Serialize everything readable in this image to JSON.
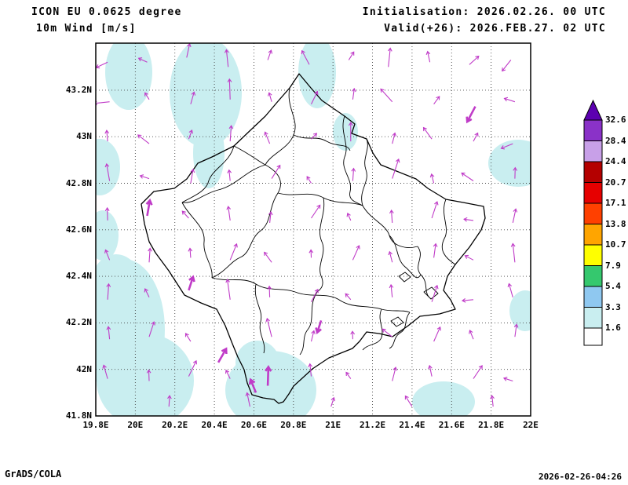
{
  "header": {
    "model": "ICON EU 0.0625 degree",
    "field": "10m Wind [m/s]",
    "initialisation": "Initialisation: 2026.02.26. 00 UTC",
    "valid": "Valid(+26): 2026.FEB.27. 02 UTC"
  },
  "footer": {
    "credit": "GrADS/COLA",
    "timestamp": "2026-02-26-04:26"
  },
  "axes": {
    "lon_labels": [
      "19.8E",
      "20E",
      "20.2E",
      "20.4E",
      "20.6E",
      "20.8E",
      "21E",
      "21.2E",
      "21.4E",
      "21.6E",
      "21.8E",
      "22E"
    ],
    "lat_labels": [
      "41.8N",
      "42N",
      "42.2N",
      "42.4N",
      "42.6N",
      "42.8N",
      "43N",
      "43.2N"
    ]
  },
  "legend": {
    "levels": [
      1.6,
      3.3,
      5.4,
      7.9,
      10.7,
      13.8,
      17.1,
      20.7,
      24.4,
      28.4,
      32.6
    ],
    "colors": [
      "#ffffff",
      "#c9eef0",
      "#8fc8f0",
      "#35c86e",
      "#ffff00",
      "#ffa500",
      "#ff4000",
      "#e60000",
      "#b40000",
      "#c8a0e8",
      "#8a32c8"
    ],
    "over_color": "#5c00b0"
  },
  "colors": {
    "shade_low": "#c9eef0",
    "arrow": "#c03cc8",
    "boundary": "#000000",
    "grid": "#444444"
  },
  "chart_data": {
    "type": "map-vector-field",
    "title": "ICON EU 0.0625 degree 10m Wind [m/s]",
    "unit": "m/s",
    "lon_range": [
      19.8,
      22.0
    ],
    "lat_range": [
      41.8,
      43.4
    ],
    "grid_step_deg": 0.2,
    "legend_position": "right",
    "shading_levels_ms": [
      1.6,
      3.3,
      5.4,
      7.9,
      10.7,
      13.8,
      17.1,
      20.7,
      24.4,
      28.4,
      32.6
    ],
    "shaded_band_visible_ms": "1.6-3.3",
    "arrows": [
      [
        19.86,
        43.32,
        205,
        16
      ],
      [
        20.06,
        43.32,
        155,
        12
      ],
      [
        20.26,
        43.34,
        78,
        18
      ],
      [
        20.47,
        43.3,
        96,
        22
      ],
      [
        20.67,
        43.33,
        70,
        13
      ],
      [
        20.88,
        43.31,
        118,
        20
      ],
      [
        21.08,
        43.33,
        58,
        12
      ],
      [
        21.28,
        43.3,
        84,
        24
      ],
      [
        21.49,
        43.32,
        102,
        14
      ],
      [
        21.69,
        43.31,
        42,
        16
      ],
      [
        21.9,
        43.33,
        232,
        18
      ],
      [
        19.87,
        43.15,
        186,
        20
      ],
      [
        20.07,
        43.16,
        122,
        10
      ],
      [
        20.28,
        43.14,
        74,
        16
      ],
      [
        20.48,
        43.16,
        92,
        26
      ],
      [
        20.69,
        43.15,
        106,
        12
      ],
      [
        20.89,
        43.14,
        64,
        18
      ],
      [
        21.1,
        43.16,
        82,
        14
      ],
      [
        21.3,
        43.15,
        132,
        22
      ],
      [
        21.51,
        43.14,
        54,
        12
      ],
      [
        21.92,
        43.15,
        162,
        14
      ],
      [
        19.86,
        42.98,
        95,
        14
      ],
      [
        20.07,
        42.97,
        142,
        18
      ],
      [
        20.27,
        42.99,
        70,
        12
      ],
      [
        20.48,
        42.98,
        86,
        20
      ],
      [
        20.68,
        42.97,
        112,
        16
      ],
      [
        20.89,
        42.99,
        46,
        10
      ],
      [
        21.09,
        42.98,
        90,
        24
      ],
      [
        21.3,
        42.97,
        76,
        14
      ],
      [
        21.5,
        42.99,
        126,
        18
      ],
      [
        21.71,
        42.98,
        62,
        12
      ],
      [
        21.91,
        42.97,
        202,
        16
      ],
      [
        19.87,
        42.81,
        100,
        22
      ],
      [
        20.07,
        42.82,
        162,
        12
      ],
      [
        20.28,
        42.8,
        80,
        18
      ],
      [
        20.48,
        42.81,
        96,
        14
      ],
      [
        20.69,
        42.82,
        58,
        20
      ],
      [
        20.89,
        42.8,
        122,
        10
      ],
      [
        21.1,
        42.81,
        86,
        16
      ],
      [
        21.3,
        42.82,
        72,
        26
      ],
      [
        21.51,
        42.8,
        104,
        12
      ],
      [
        21.71,
        42.81,
        146,
        18
      ],
      [
        21.92,
        42.82,
        88,
        14
      ],
      [
        19.86,
        42.64,
        92,
        16
      ],
      [
        20.27,
        42.65,
        132,
        12
      ],
      [
        20.48,
        42.64,
        98,
        18
      ],
      [
        20.68,
        42.63,
        84,
        14
      ],
      [
        20.89,
        42.65,
        56,
        20
      ],
      [
        21.09,
        42.64,
        114,
        10
      ],
      [
        21.3,
        42.63,
        94,
        16
      ],
      [
        21.5,
        42.65,
        72,
        22
      ],
      [
        21.71,
        42.64,
        172,
        12
      ],
      [
        21.91,
        42.63,
        78,
        18
      ],
      [
        19.87,
        42.47,
        112,
        14
      ],
      [
        20.07,
        42.46,
        86,
        18
      ],
      [
        20.28,
        42.48,
        94,
        12
      ],
      [
        20.48,
        42.47,
        68,
        22
      ],
      [
        20.69,
        42.46,
        126,
        16
      ],
      [
        20.89,
        42.48,
        92,
        10
      ],
      [
        21.1,
        42.47,
        66,
        20
      ],
      [
        21.3,
        42.46,
        104,
        14
      ],
      [
        21.51,
        42.48,
        82,
        18
      ],
      [
        21.71,
        42.47,
        152,
        12
      ],
      [
        21.92,
        42.46,
        96,
        24
      ],
      [
        19.86,
        42.3,
        86,
        20
      ],
      [
        20.07,
        42.31,
        116,
        12
      ],
      [
        20.48,
        42.3,
        98,
        26
      ],
      [
        20.68,
        42.31,
        92,
        14
      ],
      [
        20.89,
        42.29,
        62,
        18
      ],
      [
        21.09,
        42.3,
        132,
        10
      ],
      [
        21.3,
        42.31,
        96,
        16
      ],
      [
        21.5,
        42.29,
        72,
        22
      ],
      [
        21.71,
        42.3,
        186,
        14
      ],
      [
        21.91,
        42.31,
        106,
        18
      ],
      [
        19.87,
        42.13,
        96,
        16
      ],
      [
        20.07,
        42.14,
        72,
        20
      ],
      [
        20.28,
        42.12,
        122,
        12
      ],
      [
        20.69,
        42.14,
        104,
        24
      ],
      [
        20.89,
        42.12,
        76,
        14
      ],
      [
        21.1,
        42.13,
        92,
        10
      ],
      [
        21.3,
        42.14,
        142,
        16
      ],
      [
        21.51,
        42.12,
        66,
        20
      ],
      [
        21.71,
        42.13,
        112,
        12
      ],
      [
        21.92,
        42.14,
        82,
        16
      ],
      [
        19.86,
        41.96,
        106,
        18
      ],
      [
        20.07,
        41.95,
        92,
        14
      ],
      [
        20.27,
        41.97,
        64,
        22
      ],
      [
        20.48,
        41.96,
        116,
        12
      ],
      [
        20.89,
        41.97,
        96,
        16
      ],
      [
        21.09,
        41.96,
        126,
        10
      ],
      [
        21.3,
        41.95,
        76,
        18
      ],
      [
        21.5,
        41.97,
        102,
        14
      ],
      [
        21.71,
        41.96,
        56,
        20
      ],
      [
        21.91,
        41.95,
        162,
        12
      ],
      [
        20.17,
        41.84,
        86,
        14
      ],
      [
        20.58,
        41.84,
        102,
        18
      ],
      [
        20.99,
        41.84,
        72,
        12
      ],
      [
        21.4,
        41.84,
        122,
        16
      ],
      [
        21.81,
        41.84,
        96,
        14
      ]
    ],
    "bold_arrows": [
      [
        21.72,
        43.13,
        242,
        22
      ],
      [
        20.06,
        42.66,
        80,
        20
      ],
      [
        20.27,
        42.34,
        72,
        18
      ],
      [
        20.42,
        42.03,
        60,
        20
      ],
      [
        20.67,
        41.93,
        88,
        24
      ],
      [
        20.61,
        41.9,
        112,
        18
      ],
      [
        20.94,
        42.21,
        252,
        16
      ]
    ]
  }
}
